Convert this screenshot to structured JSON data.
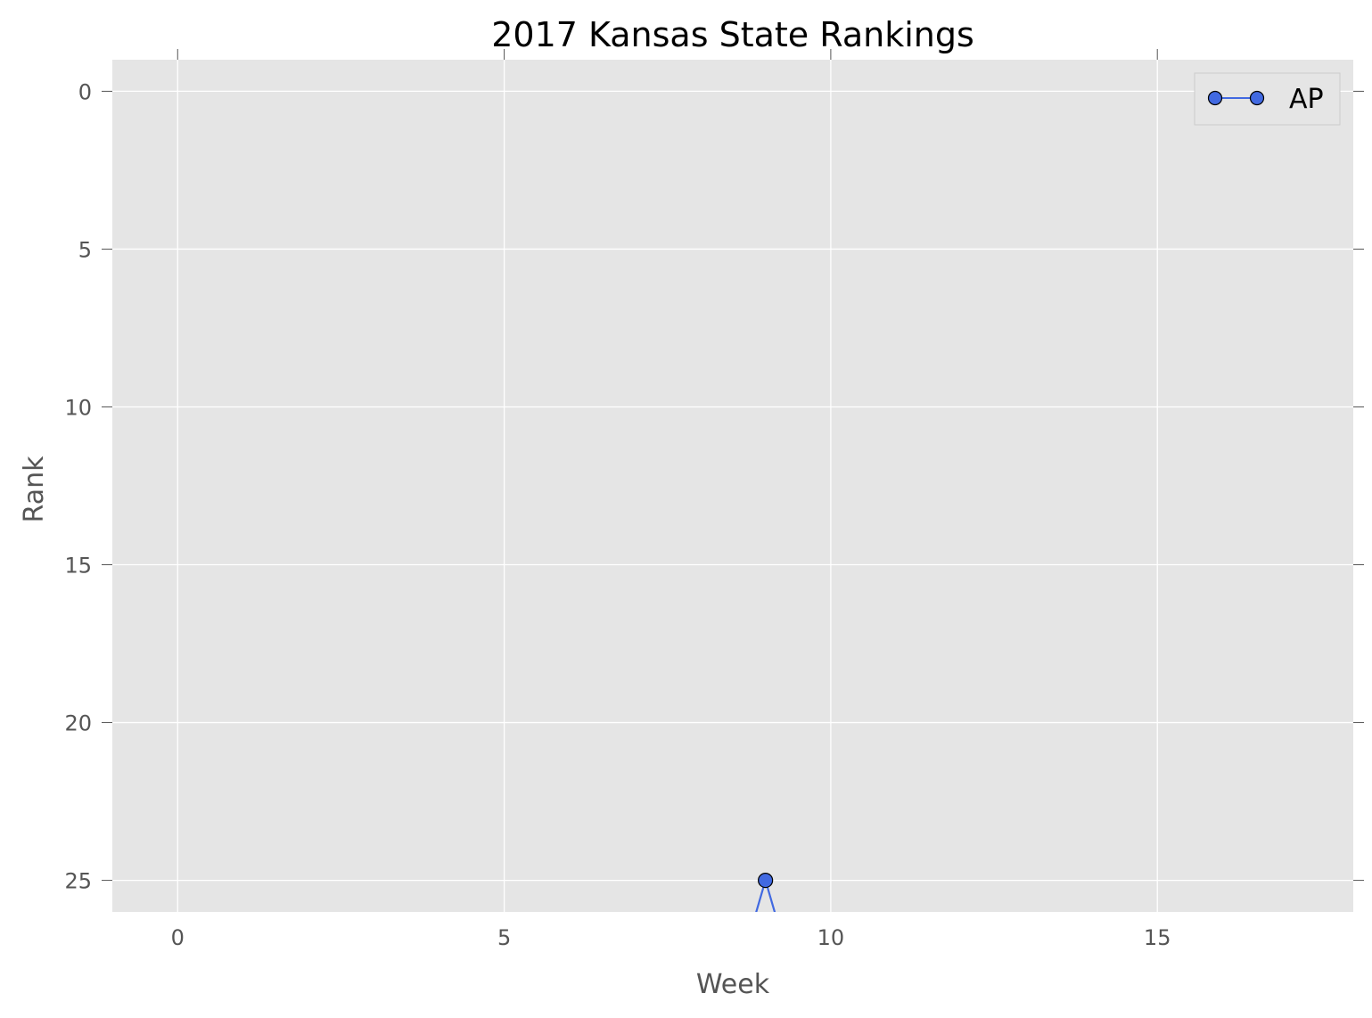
{
  "chart_data": {
    "type": "line",
    "title": "2017 Kansas State Rankings",
    "xlabel": "Week",
    "ylabel": "Rank",
    "xlim": [
      -1,
      18
    ],
    "ylim": [
      26,
      -1
    ],
    "y_inverted": true,
    "xticks": [
      0,
      5,
      10,
      15
    ],
    "yticks": [
      0,
      5,
      10,
      15,
      20,
      25
    ],
    "grid": true,
    "legend_position": "top-right",
    "series": [
      {
        "name": "AP",
        "color": "#4169e1",
        "marker": "circle",
        "x": [
          8,
          9,
          10
        ],
        "y": [
          null,
          25,
          null
        ],
        "visible_points": [
          {
            "x": 9,
            "y": 25
          }
        ]
      }
    ]
  },
  "colors": {
    "plot_background": "#e5e5e5",
    "grid": "#ffffff",
    "series": "#4169e1"
  }
}
